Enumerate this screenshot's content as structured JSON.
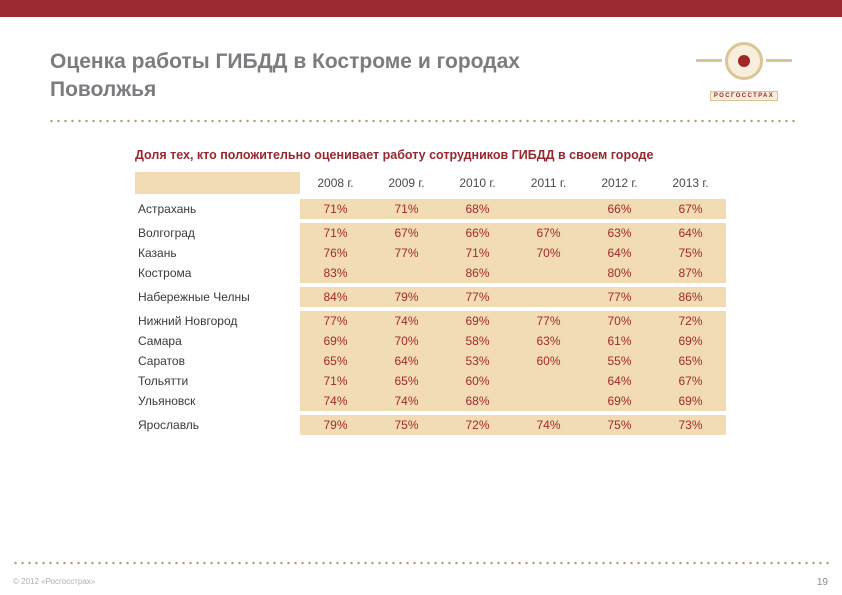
{
  "slide": {
    "title_line1": "Оценка работы ГИБДД в Костроме и городах",
    "title_line2": "Поволжья",
    "table_title": "Доля тех, кто положительно оценивает работу сотрудников ГИБДД в своем городе",
    "footer_left": "© 2012 «Росгосстрах»",
    "page_number": "19",
    "logo_text": "РОСГОССТРАХ"
  },
  "colors": {
    "brand_red": "#9C2A32",
    "value_red": "#A3282E",
    "cell_beige": "#F2DCB3",
    "title_gray": "#7C7C80",
    "logo_gold": "#D9C595"
  },
  "chart_data": {
    "type": "table",
    "title": "Доля тех, кто положительно оценивает работу сотрудников ГИБДД в своем городе",
    "columns": [
      "2008 г.",
      "2009 г.",
      "2010 г.",
      "2011 г.",
      "2012 г.",
      "2013 г."
    ],
    "rows": [
      {
        "city": "Астрахань",
        "values": [
          "71%",
          "71%",
          "68%",
          "",
          "66%",
          "67%"
        ],
        "highlight": false,
        "gap_before": false
      },
      {
        "city": "Волгоград",
        "values": [
          "71%",
          "67%",
          "66%",
          "67%",
          "63%",
          "64%"
        ],
        "highlight": false,
        "gap_before": true
      },
      {
        "city": "Казань",
        "values": [
          "76%",
          "77%",
          "71%",
          "70%",
          "64%",
          "75%"
        ],
        "highlight": false,
        "gap_before": false
      },
      {
        "city": "Кострома",
        "values": [
          "83%",
          "",
          "86%",
          "",
          "80%",
          "87%"
        ],
        "highlight": true,
        "gap_before": false
      },
      {
        "city": "Набережные Челны",
        "values": [
          "84%",
          "79%",
          "77%",
          "",
          "77%",
          "86%"
        ],
        "highlight": false,
        "gap_before": true
      },
      {
        "city": "Нижний Новгород",
        "values": [
          "77%",
          "74%",
          "69%",
          "77%",
          "70%",
          "72%"
        ],
        "highlight": false,
        "gap_before": true
      },
      {
        "city": "Самара",
        "values": [
          "69%",
          "70%",
          "58%",
          "63%",
          "61%",
          "69%"
        ],
        "highlight": false,
        "gap_before": false
      },
      {
        "city": "Саратов",
        "values": [
          "65%",
          "64%",
          "53%",
          "60%",
          "55%",
          "65%"
        ],
        "highlight": false,
        "gap_before": false
      },
      {
        "city": "Тольятти",
        "values": [
          "71%",
          "65%",
          "60%",
          "",
          "64%",
          "67%"
        ],
        "highlight": false,
        "gap_before": false
      },
      {
        "city": "Ульяновск",
        "values": [
          "74%",
          "74%",
          "68%",
          "",
          "69%",
          "69%"
        ],
        "highlight": false,
        "gap_before": false
      },
      {
        "city": "Ярославль",
        "values": [
          "79%",
          "75%",
          "72%",
          "74%",
          "75%",
          "73%"
        ],
        "highlight": false,
        "gap_before": true
      }
    ]
  }
}
